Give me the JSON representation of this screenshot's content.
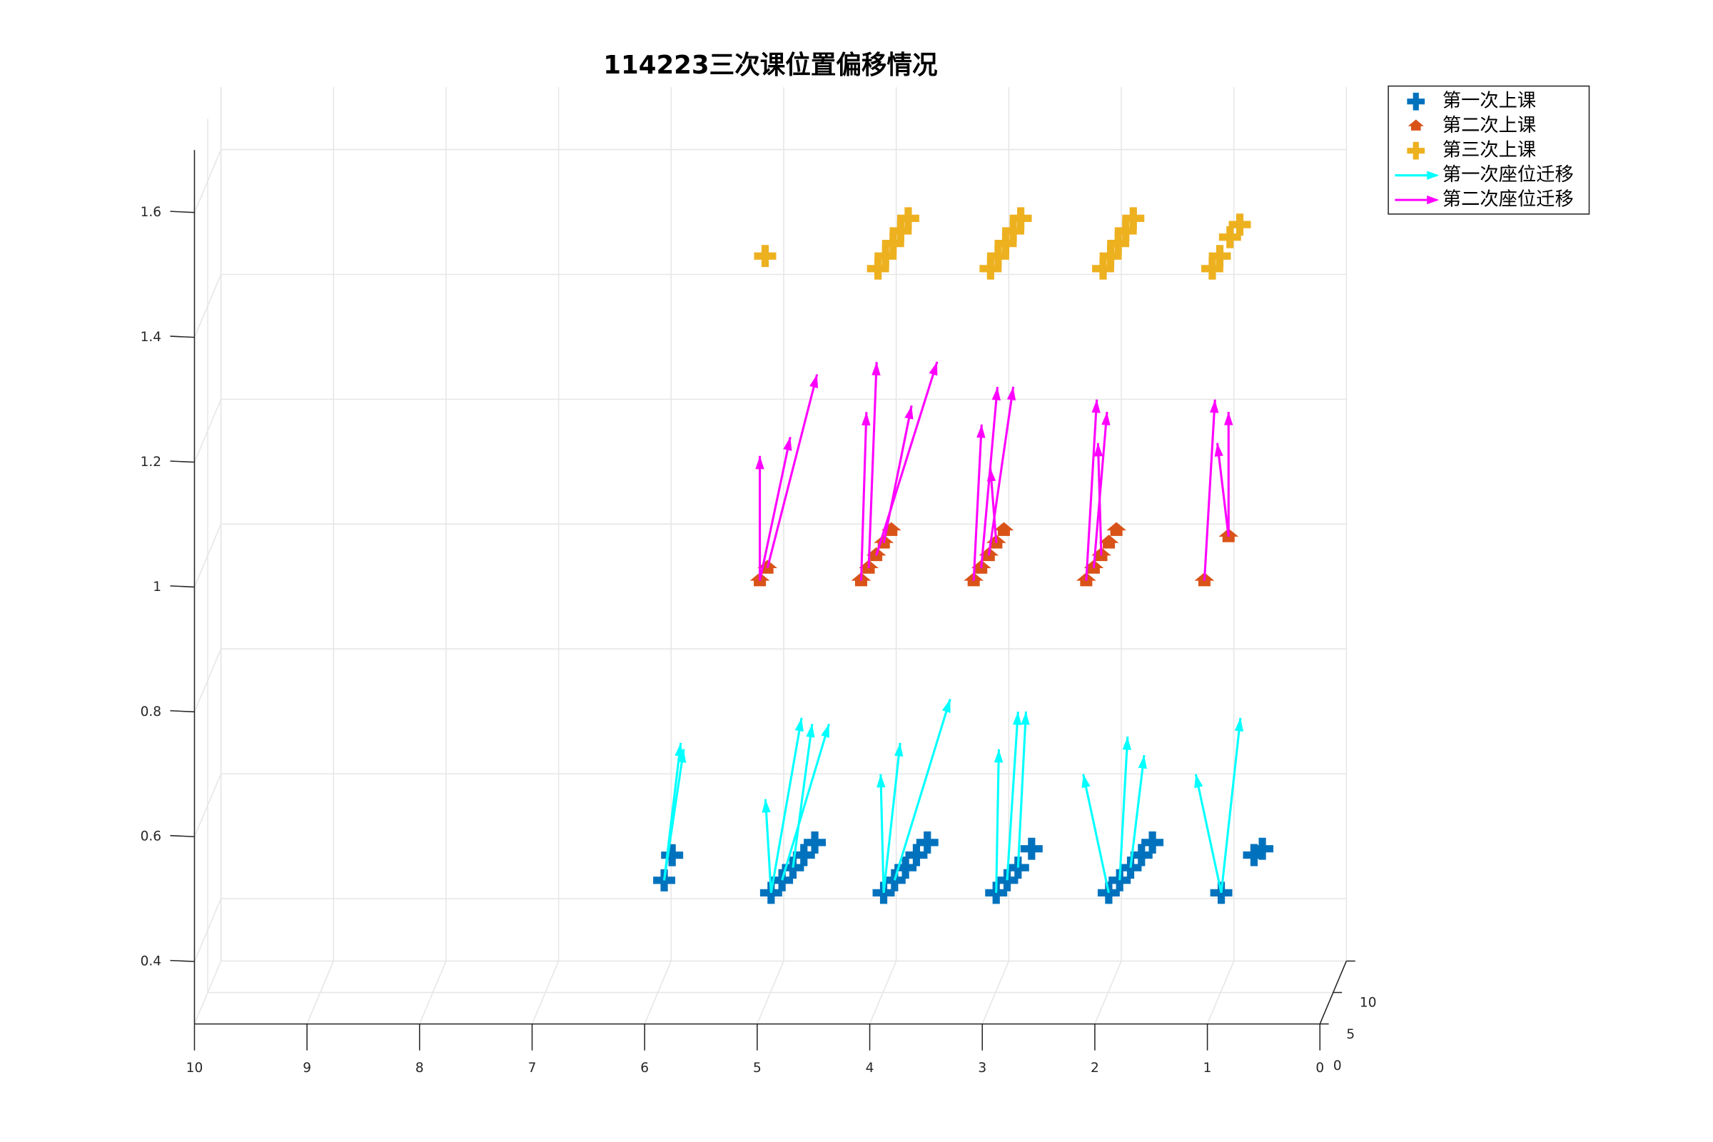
{
  "chart_data": {
    "type": "scatter3d",
    "title": "114223三次课位置偏移情况",
    "xlim": [
      0,
      10
    ],
    "ylim": [
      0,
      10
    ],
    "zlim": [
      0.3,
      1.7
    ],
    "x_reversed": true,
    "xticks": [
      0,
      1,
      2,
      3,
      4,
      5,
      6,
      7,
      8,
      9,
      10
    ],
    "yticks": [
      0,
      5,
      10
    ],
    "zticks": [
      0.4,
      0.6,
      0.8,
      1,
      1.2,
      1.4,
      1.6
    ],
    "grid": true,
    "legend": "outside-top-right",
    "series": [
      {
        "name": "第一次上课",
        "kind": "scatter",
        "marker": "plus",
        "color": "#0072bd",
        "x": [
          5.85,
          5.85,
          4.9,
          4.85,
          4.8,
          4.75,
          4.7,
          3.9,
          3.85,
          3.8,
          3.75,
          3.7,
          2.9,
          2.85,
          2.8,
          2.75,
          1.9,
          1.85,
          1.8,
          1.75,
          1.7,
          0.9,
          0.75,
          0.7
        ],
        "y": [
          1,
          4,
          1,
          3,
          5,
          7,
          9,
          1,
          3,
          5,
          7,
          9,
          1,
          3,
          5,
          8,
          1,
          3,
          5,
          7,
          9,
          1,
          7,
          8
        ],
        "z": [
          0.52,
          0.53,
          0.5,
          0.5,
          0.5,
          0.5,
          0.5,
          0.5,
          0.5,
          0.5,
          0.5,
          0.5,
          0.5,
          0.5,
          0.5,
          0.5,
          0.5,
          0.5,
          0.5,
          0.5,
          0.5,
          0.5,
          0.5,
          0.5
        ]
      },
      {
        "name": "第二次上课",
        "kind": "scatter",
        "marker": "house",
        "color": "#d95319",
        "x": [
          5.0,
          4.98,
          4.1,
          4.08,
          4.06,
          4.04,
          4.02,
          3.1,
          3.08,
          3.06,
          3.04,
          3.02,
          2.1,
          2.08,
          2.06,
          2.04,
          2.02,
          1.05,
          1.0
        ],
        "y": [
          1,
          3,
          1,
          3,
          5,
          7,
          9,
          1,
          3,
          5,
          7,
          9,
          1,
          3,
          5,
          7,
          9,
          1,
          8
        ],
        "z": [
          1,
          1,
          1,
          1,
          1,
          1,
          1,
          1,
          1,
          1,
          1,
          1,
          1,
          1,
          1,
          1,
          1,
          1,
          1
        ]
      },
      {
        "name": "第三次上课",
        "kind": "scatter",
        "marker": "plus",
        "color": "#edb120",
        "x": [
          5.0,
          3.95,
          3.93,
          3.91,
          3.89,
          3.87,
          2.95,
          2.93,
          2.91,
          2.89,
          2.87,
          1.95,
          1.93,
          1.91,
          1.89,
          1.87,
          0.98,
          0.96,
          0.94,
          0.9
        ],
        "y": [
          3,
          1,
          3,
          5,
          7,
          9,
          1,
          3,
          5,
          7,
          9,
          1,
          3,
          5,
          7,
          9,
          1,
          3,
          6,
          8
        ],
        "z": [
          1.5,
          1.5,
          1.5,
          1.5,
          1.5,
          1.5,
          1.5,
          1.5,
          1.5,
          1.5,
          1.5,
          1.5,
          1.5,
          1.5,
          1.5,
          1.5,
          1.5,
          1.5,
          1.5,
          1.5
        ]
      },
      {
        "name": "第一次座位迁移",
        "kind": "quiver",
        "color": "#00ffff",
        "x": [
          5.85,
          5.85,
          4.9,
          4.9,
          4.85,
          4.8,
          3.9,
          3.9,
          3.85,
          2.9,
          2.85,
          2.8,
          1.9,
          1.85,
          1.8,
          0.9,
          0.9
        ],
        "y": [
          1,
          1,
          1,
          1,
          3,
          5,
          1,
          1,
          3,
          1,
          3,
          5,
          1,
          3,
          5,
          1,
          1
        ],
        "z": [
          0.52,
          0.52,
          0.5,
          0.5,
          0.5,
          0.5,
          0.5,
          0.5,
          0.5,
          0.5,
          0.5,
          0.5,
          0.5,
          0.5,
          0.5,
          0.5,
          0.5
        ],
        "u": [
          -0.15,
          -0.1,
          0.05,
          -0.2,
          -0.3,
          -0.1,
          0.05,
          -0.1,
          -0.4,
          0,
          -0.05,
          0,
          0.25,
          0,
          -0.05,
          0.25,
          -0.1
        ],
        "v": [
          1,
          2,
          0,
          3,
          5,
          3,
          1,
          2,
          4,
          1,
          2,
          3,
          1,
          3,
          3,
          1,
          3
        ],
        "w": [
          0.2,
          0.2,
          0.15,
          0.25,
          0.2,
          0.2,
          0.18,
          0.22,
          0.25,
          0.22,
          0.25,
          0.22,
          0.18,
          0.2,
          0.15,
          0.18,
          0.25
        ]
      },
      {
        "name": "第二次座位迁移",
        "kind": "quiver",
        "color": "#ff00ff",
        "x": [
          5.0,
          5.0,
          4.98,
          4.1,
          4.08,
          4.06,
          4.04,
          3.1,
          3.08,
          3.06,
          3.04,
          2.1,
          2.08,
          2.06,
          1.05,
          1.0,
          1.0
        ],
        "y": [
          1,
          1,
          3,
          1,
          3,
          5,
          7,
          1,
          3,
          5,
          7,
          1,
          3,
          5,
          1,
          8,
          8
        ],
        "z": [
          1,
          1,
          1,
          1,
          1,
          1,
          1,
          1,
          1,
          1,
          1,
          1,
          1,
          1,
          1,
          1,
          1
        ],
        "u": [
          0,
          -0.2,
          -0.3,
          0,
          0,
          -0.4,
          -0.2,
          0,
          -0.05,
          -0.1,
          0.1,
          0,
          0,
          0.1,
          0,
          0.1,
          0
        ],
        "v": [
          0,
          3,
          6,
          2,
          3,
          6,
          2,
          3,
          4,
          5,
          2,
          4,
          5,
          3,
          4,
          0,
          0
        ],
        "w": [
          0.2,
          0.2,
          0.25,
          0.25,
          0.3,
          0.25,
          0.2,
          0.22,
          0.25,
          0.22,
          0.1,
          0.25,
          0.2,
          0.15,
          0.25,
          0.15,
          0.2
        ]
      }
    ]
  }
}
